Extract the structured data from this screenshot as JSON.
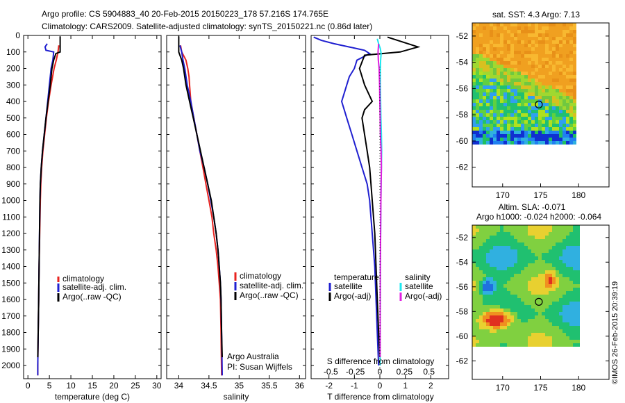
{
  "header": {
    "line1": "Argo profile: CS 5904883_40 20-Feb-2015 20150223_178 57.216S 174.765E",
    "line2": "Climatology: CARS2009. Satellite-adjusted climatology: synTS_20150221.nc (0.86d later)"
  },
  "colors": {
    "climatology": "#e8231f",
    "satellite": "#1f1fd0",
    "argo": "#000000",
    "satellite_salinity": "#1ee8f0",
    "argo_salinity": "#e020e0"
  },
  "chart_data": [
    {
      "type": "line",
      "xlabel": "temperature (deg C)",
      "ylabel": "",
      "xlim": [
        -1,
        31
      ],
      "ylim": [
        2080,
        0
      ],
      "x_ticks": [
        "0",
        "5",
        "10",
        "15",
        "20",
        "25",
        "30"
      ],
      "y_ticks": [
        "0",
        "100",
        "200",
        "300",
        "400",
        "500",
        "600",
        "700",
        "800",
        "900",
        "1000",
        "1100",
        "1200",
        "1300",
        "1400",
        "1500",
        "1600",
        "1700",
        "1800",
        "1900",
        "2000"
      ],
      "legend": [
        "climatology",
        "satellite-adj. clim.",
        "Argo(..raw -QC)"
      ],
      "legend_position": "lower-center",
      "series": [
        {
          "name": "climatology",
          "color_key": "climatology",
          "points": [
            [
              7.2,
              60
            ],
            [
              7.0,
              100
            ],
            [
              6.6,
              150
            ],
            [
              6.1,
              200
            ],
            [
              5.4,
              300
            ],
            [
              4.8,
              400
            ],
            [
              4.3,
              500
            ],
            [
              3.9,
              600
            ],
            [
              3.5,
              700
            ],
            [
              3.2,
              800
            ],
            [
              3.0,
              900
            ],
            [
              2.9,
              1000
            ],
            [
              2.75,
              1200
            ],
            [
              2.6,
              1400
            ],
            [
              2.5,
              1600
            ],
            [
              2.4,
              1800
            ],
            [
              2.3,
              2000
            ],
            [
              2.3,
              2060
            ]
          ]
        },
        {
          "name": "satellite-adj. clim.",
          "color_key": "satellite",
          "points": [
            [
              4.5,
              50
            ],
            [
              4.0,
              70
            ],
            [
              4.2,
              90
            ],
            [
              6.0,
              100
            ],
            [
              5.8,
              150
            ],
            [
              5.4,
              200
            ],
            [
              5.0,
              300
            ],
            [
              4.6,
              400
            ],
            [
              4.2,
              500
            ],
            [
              3.8,
              600
            ],
            [
              3.4,
              700
            ],
            [
              3.1,
              800
            ],
            [
              2.9,
              900
            ],
            [
              2.8,
              1000
            ],
            [
              2.7,
              1200
            ],
            [
              2.6,
              1400
            ],
            [
              2.5,
              1600
            ],
            [
              2.4,
              1800
            ],
            [
              2.3,
              2000
            ],
            [
              2.3,
              2060
            ]
          ]
        },
        {
          "name": "Argo(..raw -QC)",
          "color_key": "argo",
          "points": [
            [
              7.5,
              5
            ],
            [
              7.5,
              100
            ],
            [
              6.5,
              110
            ],
            [
              6.0,
              150
            ],
            [
              5.6,
              200
            ],
            [
              5.2,
              300
            ],
            [
              4.7,
              400
            ],
            [
              4.2,
              500
            ],
            [
              3.8,
              600
            ],
            [
              3.4,
              700
            ],
            [
              3.1,
              800
            ],
            [
              2.9,
              900
            ],
            [
              2.8,
              1000
            ],
            [
              2.7,
              1200
            ],
            [
              2.6,
              1400
            ],
            [
              2.5,
              1600
            ],
            [
              2.4,
              1800
            ],
            [
              2.3,
              1950
            ]
          ]
        }
      ]
    },
    {
      "type": "line",
      "xlabel": "salinity",
      "ylabel": "",
      "xlim": [
        33.8,
        36.1
      ],
      "ylim": [
        2080,
        0
      ],
      "x_ticks": [
        "34",
        "34.5",
        "35",
        "35.5",
        "36"
      ],
      "legend": [
        "climatology",
        "satellite-adj. clim.",
        "Argo(..raw -QC)"
      ],
      "legend_position": "lower-right",
      "annotations": [
        "Argo Australia",
        "PI: Susan Wijffels"
      ],
      "series": [
        {
          "name": "climatology",
          "color_key": "climatology",
          "points": [
            [
              34.03,
              60
            ],
            [
              34.05,
              100
            ],
            [
              34.12,
              150
            ],
            [
              34.15,
              200
            ],
            [
              34.17,
              250
            ],
            [
              34.18,
              300
            ],
            [
              34.2,
              400
            ],
            [
              34.25,
              500
            ],
            [
              34.3,
              600
            ],
            [
              34.35,
              700
            ],
            [
              34.4,
              800
            ],
            [
              34.45,
              900
            ],
            [
              34.5,
              1000
            ],
            [
              34.55,
              1100
            ],
            [
              34.58,
              1200
            ],
            [
              34.62,
              1300
            ],
            [
              34.65,
              1400
            ],
            [
              34.67,
              1500
            ],
            [
              34.69,
              1600
            ],
            [
              34.7,
              1800
            ],
            [
              34.71,
              2060
            ]
          ]
        },
        {
          "name": "satellite-adj. clim.",
          "color_key": "satellite",
          "points": [
            [
              34.02,
              60
            ],
            [
              34.05,
              100
            ],
            [
              34.07,
              150
            ],
            [
              34.1,
              200
            ],
            [
              34.14,
              300
            ],
            [
              34.2,
              400
            ],
            [
              34.25,
              500
            ],
            [
              34.3,
              600
            ],
            [
              34.35,
              700
            ],
            [
              34.42,
              800
            ],
            [
              34.48,
              900
            ],
            [
              34.53,
              1000
            ],
            [
              34.58,
              1100
            ],
            [
              34.62,
              1200
            ],
            [
              34.65,
              1300
            ],
            [
              34.67,
              1400
            ],
            [
              34.69,
              1500
            ],
            [
              34.7,
              1600
            ],
            [
              34.71,
              1800
            ],
            [
              34.72,
              2060
            ]
          ]
        },
        {
          "name": "Argo(..raw -QC)",
          "color_key": "argo",
          "points": [
            [
              34.0,
              5
            ],
            [
              34.0,
              100
            ],
            [
              34.05,
              150
            ],
            [
              34.08,
              200
            ],
            [
              34.12,
              300
            ],
            [
              34.18,
              400
            ],
            [
              34.24,
              500
            ],
            [
              34.3,
              600
            ],
            [
              34.36,
              700
            ],
            [
              34.42,
              800
            ],
            [
              34.48,
              900
            ],
            [
              34.54,
              1000
            ],
            [
              34.58,
              1100
            ],
            [
              34.62,
              1200
            ],
            [
              34.65,
              1300
            ],
            [
              34.67,
              1400
            ],
            [
              34.69,
              1500
            ],
            [
              34.7,
              1600
            ],
            [
              34.71,
              1800
            ],
            [
              34.72,
              1950
            ]
          ]
        }
      ]
    },
    {
      "type": "line",
      "xlabel": "T difference from climatology",
      "x2label": "S difference from climatology",
      "ylabel": "",
      "xlim": [
        -2.7,
        2.7
      ],
      "ylim": [
        2080,
        0
      ],
      "x_ticks": [
        "-2",
        "-1",
        "0",
        "1",
        "2"
      ],
      "x2_ticks": [
        "-0.5",
        "-0.25",
        "0",
        "0.25",
        "0.5"
      ],
      "legend_titles": [
        "temperature",
        "salinity"
      ],
      "legend": [
        "satellite",
        "Argo(-adj)",
        "satellite",
        "Argo(-adj)"
      ],
      "legend_position": "lower-center",
      "series": [
        {
          "name": "satellite",
          "group": "temperature",
          "color_key": "satellite",
          "points": [
            [
              -2.6,
              10
            ],
            [
              -2.3,
              30
            ],
            [
              -1.8,
              50
            ],
            [
              -1.2,
              70
            ],
            [
              -0.6,
              90
            ],
            [
              -0.4,
              110
            ],
            [
              -0.9,
              150
            ],
            [
              -1.0,
              200
            ],
            [
              -1.2,
              250
            ],
            [
              -1.3,
              300
            ],
            [
              -1.4,
              350
            ],
            [
              -1.5,
              400
            ],
            [
              -1.4,
              450
            ],
            [
              -1.3,
              500
            ],
            [
              -1.1,
              600
            ],
            [
              -0.9,
              700
            ],
            [
              -0.7,
              800
            ],
            [
              -0.5,
              900
            ],
            [
              -0.4,
              1000
            ],
            [
              -0.3,
              1200
            ],
            [
              -0.2,
              1400
            ],
            [
              -0.15,
              1600
            ],
            [
              -0.1,
              1800
            ],
            [
              -0.05,
              2000
            ]
          ]
        },
        {
          "name": "Argo(-adj)",
          "group": "temperature",
          "color_key": "argo",
          "points": [
            [
              0.3,
              10
            ],
            [
              1.5,
              70
            ],
            [
              0.8,
              100
            ],
            [
              -0.6,
              120
            ],
            [
              -0.8,
              200
            ],
            [
              -0.6,
              300
            ],
            [
              -0.3,
              400
            ],
            [
              -0.6,
              450
            ],
            [
              -0.7,
              500
            ],
            [
              -0.6,
              600
            ],
            [
              -0.5,
              700
            ],
            [
              -0.4,
              800
            ],
            [
              -0.35,
              900
            ],
            [
              -0.3,
              1000
            ],
            [
              -0.2,
              1200
            ],
            [
              -0.15,
              1400
            ],
            [
              -0.1,
              1600
            ],
            [
              -0.05,
              1800
            ],
            [
              0,
              1950
            ]
          ]
        },
        {
          "name": "satellite",
          "group": "salinity",
          "color_key": "satellite_salinity",
          "points": [
            [
              -0.1,
              20
            ],
            [
              -0.05,
              50
            ],
            [
              0.02,
              80
            ],
            [
              0.05,
              110
            ],
            [
              0.03,
              150
            ],
            [
              0.02,
              200
            ],
            [
              0.02,
              300
            ],
            [
              0.03,
              400
            ],
            [
              0.04,
              500
            ],
            [
              0.06,
              600
            ],
            [
              0.07,
              700
            ],
            [
              0.06,
              800
            ],
            [
              0.05,
              900
            ],
            [
              0.04,
              1000
            ],
            [
              0.03,
              1200
            ],
            [
              0.02,
              1400
            ],
            [
              0.02,
              1600
            ],
            [
              0.01,
              1800
            ],
            [
              0.01,
              2000
            ]
          ]
        },
        {
          "name": "Argo(-adj)",
          "group": "salinity",
          "color_key": "argo_salinity",
          "points": [
            [
              -0.05,
              50
            ],
            [
              -0.07,
              100
            ],
            [
              -0.06,
              150
            ],
            [
              -0.03,
              200
            ],
            [
              -0.01,
              300
            ],
            [
              0.0,
              400
            ],
            [
              0.01,
              500
            ],
            [
              0.02,
              600
            ],
            [
              0.05,
              700
            ],
            [
              0.06,
              800
            ],
            [
              0.05,
              900
            ],
            [
              0.04,
              1000
            ],
            [
              0.03,
              1200
            ],
            [
              0.02,
              1400
            ],
            [
              0.015,
              1600
            ],
            [
              0.01,
              1800
            ],
            [
              0.01,
              1950
            ]
          ]
        }
      ]
    },
    {
      "type": "heatmap",
      "title": "sat. SST: 4.3  Argo: 7.13",
      "xlim": [
        166,
        184
      ],
      "ylim": [
        -63.5,
        -51
      ],
      "x_ticks": [
        "170",
        "175",
        "180"
      ],
      "y_ticks": [
        "-52",
        "-54",
        "-56",
        "-58",
        "-60",
        "-62"
      ],
      "marker": [
        174.765,
        -57.216
      ]
    },
    {
      "type": "heatmap",
      "title": "Altim. SLA: -0.071",
      "subtitle": "Argo h1000: -0.024  h2000: -0.064",
      "xlim": [
        166,
        184
      ],
      "ylim": [
        -63.5,
        -51
      ],
      "x_ticks": [
        "170",
        "175",
        "180"
      ],
      "y_ticks": [
        "-52",
        "-54",
        "-56",
        "-58",
        "-60",
        "-62"
      ],
      "marker": [
        174.765,
        -57.216
      ]
    }
  ],
  "footer": {
    "credit": "©IMOS 26-Feb-2015 20:39:19"
  }
}
